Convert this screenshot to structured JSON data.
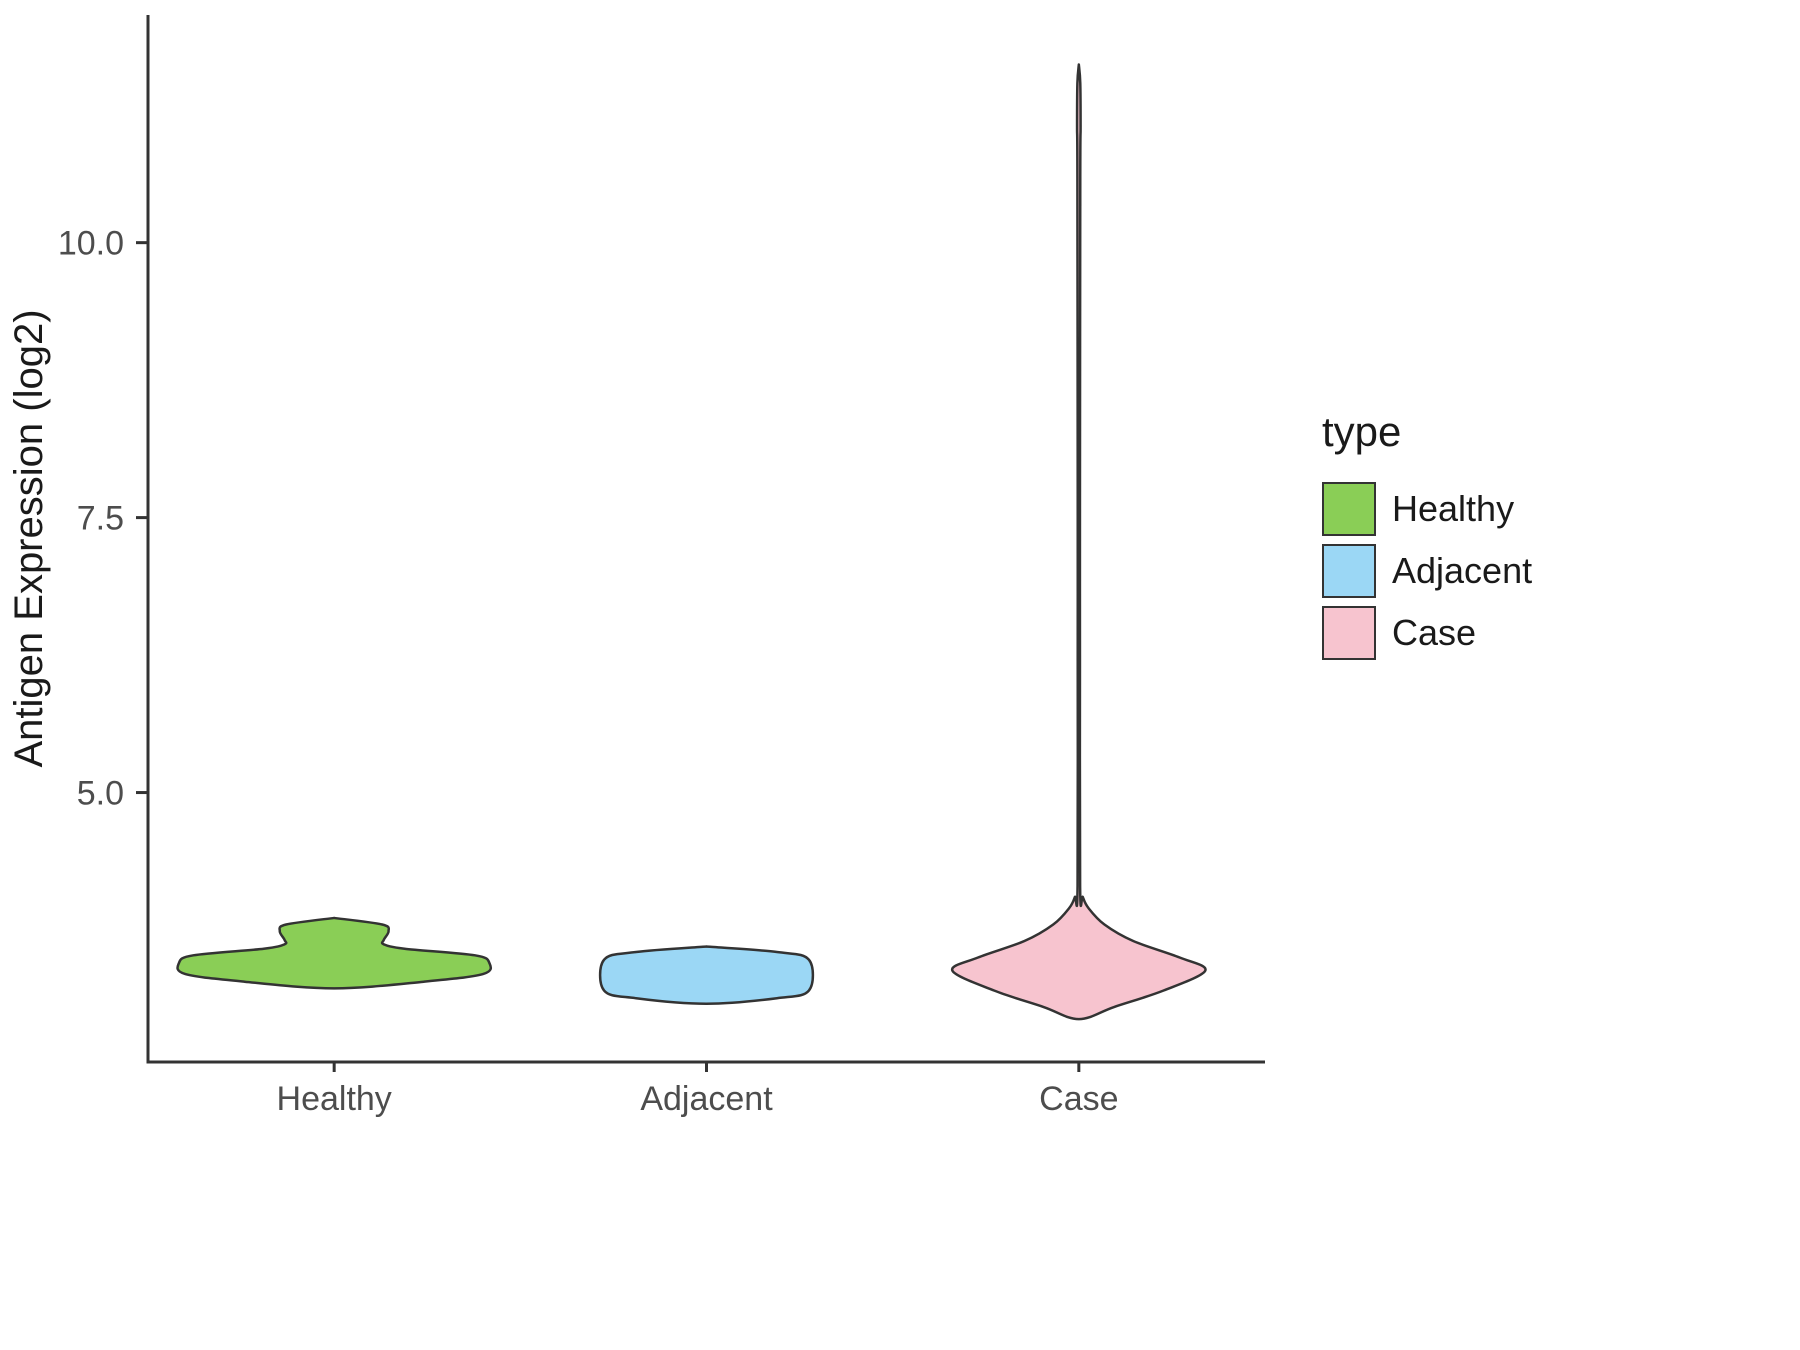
{
  "chart_data": {
    "type": "violin",
    "title": "",
    "xlabel": "",
    "ylabel": "Antigen Expression (log2)",
    "categories": [
      "Healthy",
      "Adjacent",
      "Case"
    ],
    "yticks": [
      5.0,
      7.5,
      10.0
    ],
    "ytick_labels": [
      "5.0",
      "7.5",
      "10.0"
    ],
    "ylim": [
      2.55,
      12.07
    ],
    "grid": false,
    "legend": {
      "title": "type",
      "position": "right",
      "items": [
        {
          "label": "Healthy",
          "color": "#8ACE56"
        },
        {
          "label": "Adjacent",
          "color": "#9BD7F5"
        },
        {
          "label": "Case",
          "color": "#F7C4CF"
        }
      ]
    },
    "series": [
      {
        "name": "Healthy",
        "color": "#8ACE56",
        "profile": [
          [
            3.22,
            0.0
          ],
          [
            3.28,
            0.56
          ],
          [
            3.35,
            0.93
          ],
          [
            3.45,
            0.97
          ],
          [
            3.52,
            0.88
          ],
          [
            3.58,
            0.44
          ],
          [
            3.62,
            0.31
          ],
          [
            3.66,
            0.31
          ],
          [
            3.74,
            0.34
          ],
          [
            3.8,
            0.3
          ],
          [
            3.86,
            0.0
          ]
        ]
      },
      {
        "name": "Adjacent",
        "color": "#9BD7F5",
        "profile": [
          [
            3.08,
            0.0
          ],
          [
            3.13,
            0.44
          ],
          [
            3.2,
            0.64
          ],
          [
            3.48,
            0.64
          ],
          [
            3.55,
            0.44
          ],
          [
            3.6,
            0.0
          ]
        ]
      },
      {
        "name": "Case",
        "color": "#F7C4CF",
        "profile": [
          [
            2.94,
            0.0
          ],
          [
            3.05,
            0.22
          ],
          [
            3.2,
            0.53
          ],
          [
            3.38,
            0.79
          ],
          [
            3.5,
            0.63
          ],
          [
            3.65,
            0.34
          ],
          [
            3.8,
            0.16
          ],
          [
            3.95,
            0.06
          ],
          [
            4.05,
            0.025
          ],
          [
            4.15,
            0.008
          ],
          [
            6.2,
            0.007
          ],
          [
            7.7,
            0.007
          ],
          [
            10.6,
            0.009
          ],
          [
            11.05,
            0.011
          ],
          [
            11.45,
            0.009
          ],
          [
            11.62,
            0.0
          ]
        ]
      }
    ]
  },
  "colors": {
    "axis": "#333333",
    "violin_stroke": "#333333",
    "tick_text": "#4d4d4d",
    "title_text": "#1a1a1a",
    "background": "#ffffff"
  }
}
